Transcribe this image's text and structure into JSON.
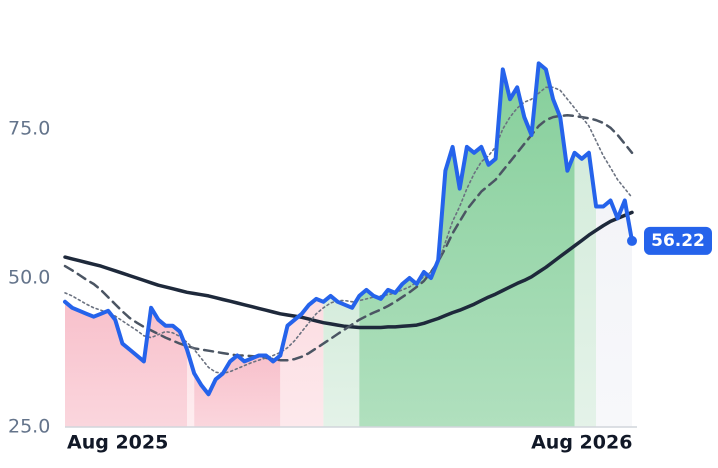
{
  "chart_data": {
    "type": "line",
    "categories": [
      "Aug 2025",
      null,
      null,
      null,
      null,
      null,
      null,
      null,
      null,
      null,
      null,
      null,
      null,
      null,
      null,
      null,
      null,
      null,
      null,
      null,
      null,
      null,
      null,
      null,
      null,
      null,
      null,
      null,
      null,
      null,
      null,
      null,
      null,
      null,
      null,
      null,
      null,
      null,
      null,
      null,
      null,
      null,
      null,
      null,
      null,
      null,
      null,
      null,
      null,
      null,
      null,
      null,
      null,
      null,
      null,
      null,
      null,
      null,
      null,
      null,
      null,
      null,
      null,
      null,
      null,
      null,
      null,
      null,
      null,
      null,
      null,
      null,
      "Aug 2026",
      null,
      null,
      null,
      null,
      null,
      null,
      null
    ],
    "ylim": [
      25,
      90
    ],
    "yticks": [
      {
        "value": 25,
        "label": "25.0"
      },
      {
        "value": 50,
        "label": "50.0"
      },
      {
        "value": 75,
        "label": "75.0"
      }
    ],
    "grid": false,
    "bands": [
      {
        "from": 0,
        "to": 17,
        "color": "#f8c0cb"
      },
      {
        "from": 17,
        "to": 18,
        "color": "#fde4e8"
      },
      {
        "from": 18,
        "to": 30,
        "color": "#f8c0cb"
      },
      {
        "from": 30,
        "to": 36,
        "color": "#fcdde2"
      },
      {
        "from": 36,
        "to": 41,
        "color": "#d5ecdc"
      },
      {
        "from": 41,
        "to": 71,
        "color": "#86cf9b"
      },
      {
        "from": 71,
        "to": 74,
        "color": "#d5ecdc"
      },
      {
        "from": 74,
        "to": 79,
        "color": "#f3f4f8"
      }
    ],
    "series": [
      {
        "color": "#1e293b",
        "dash": "solid",
        "width": 3.5,
        "values": [
          53.5,
          53.2,
          52.9,
          52.6,
          52.3,
          52,
          51.6,
          51.2,
          50.8,
          50.4,
          50,
          49.6,
          49.2,
          48.8,
          48.5,
          48.2,
          47.9,
          47.6,
          47.4,
          47.2,
          47,
          46.7,
          46.4,
          46.1,
          45.8,
          45.5,
          45.2,
          44.9,
          44.6,
          44.3,
          44,
          43.8,
          43.6,
          43.4,
          43.1,
          42.8,
          42.5,
          42.3,
          42.1,
          41.9,
          41.8,
          41.7,
          41.7,
          41.7,
          41.7,
          41.8,
          41.8,
          41.9,
          42,
          42.1,
          42.4,
          42.8,
          43.2,
          43.7,
          44.2,
          44.6,
          45.1,
          45.6,
          46.2,
          46.8,
          47.3,
          47.9,
          48.5,
          49.1,
          49.6,
          50.2,
          51,
          51.8,
          52.7,
          53.6,
          54.5,
          55.4,
          56.3,
          57.2,
          58,
          58.8,
          59.5,
          60,
          60.5,
          61
        ]
      },
      {
        "color": "#4b5563",
        "dash": "dashed",
        "width": 2.5,
        "values": [
          52,
          51.3,
          50.5,
          49.7,
          49,
          48,
          46.8,
          45.6,
          44.4,
          43.3,
          42.5,
          41.8,
          41.2,
          40.6,
          40,
          39.5,
          39,
          38.6,
          38.2,
          38,
          37.8,
          37.6,
          37.4,
          37.2,
          37,
          37,
          36.9,
          36.8,
          36.6,
          36.4,
          36.2,
          36.2,
          36.4,
          36.8,
          37.4,
          38.2,
          39,
          39.8,
          40.6,
          41.4,
          42.2,
          43,
          43.6,
          44.2,
          44.7,
          45.3,
          46,
          46.8,
          47.6,
          48.5,
          49.5,
          51,
          52.8,
          55,
          57.5,
          59.5,
          61.5,
          63,
          64.5,
          65.5,
          66.5,
          68,
          69.5,
          71,
          72.5,
          74,
          75.5,
          76.5,
          77,
          77.2,
          77.3,
          77.2,
          77,
          76.8,
          76.5,
          76,
          75.2,
          74,
          72.5,
          71
        ]
      },
      {
        "color": "#6b7280",
        "dash": "dotted",
        "width": 1.6,
        "values": [
          47.5,
          47,
          46.3,
          45.6,
          45,
          44.6,
          44.2,
          43.6,
          42.8,
          42,
          41.2,
          40.3,
          40,
          40.5,
          41,
          40.8,
          40.2,
          39.2,
          38,
          36.5,
          35,
          34.2,
          34,
          34.3,
          34.8,
          35.3,
          35.8,
          36.2,
          36.6,
          37,
          37.5,
          38.3,
          39.5,
          41,
          42.5,
          44,
          45,
          45.8,
          46.2,
          46.2,
          46,
          46.2,
          46.5,
          46.8,
          47,
          47.2,
          47.5,
          48,
          48.5,
          49.3,
          50.2,
          51,
          52.5,
          56,
          59.5,
          62,
          65,
          67.5,
          69.5,
          70.5,
          72,
          75,
          77,
          78.5,
          79.5,
          80,
          81,
          82,
          82,
          81.5,
          80,
          78.5,
          77,
          75.5,
          73,
          70.5,
          68.5,
          66.5,
          65,
          63.5
        ]
      },
      {
        "color": "#2563eb",
        "dash": "solid",
        "width": 4,
        "values": [
          46,
          45,
          44.5,
          44,
          43.5,
          44,
          44.5,
          43,
          39,
          38,
          37,
          36,
          45,
          43,
          42,
          42,
          41,
          38,
          34,
          32,
          30.5,
          33,
          34,
          36,
          37,
          36,
          36.5,
          37,
          37,
          36,
          37,
          42,
          43,
          44,
          45.5,
          46.5,
          46,
          47,
          46,
          45.5,
          45,
          47,
          48,
          47,
          46.5,
          48,
          47.5,
          49,
          50,
          49,
          51,
          50,
          53,
          68,
          72,
          65,
          72,
          71,
          72,
          69,
          70,
          85,
          80,
          82,
          77,
          74,
          86,
          85,
          80,
          77,
          68,
          71,
          70,
          71,
          62,
          62,
          63,
          60,
          63,
          56.22
        ]
      }
    ]
  }
}
